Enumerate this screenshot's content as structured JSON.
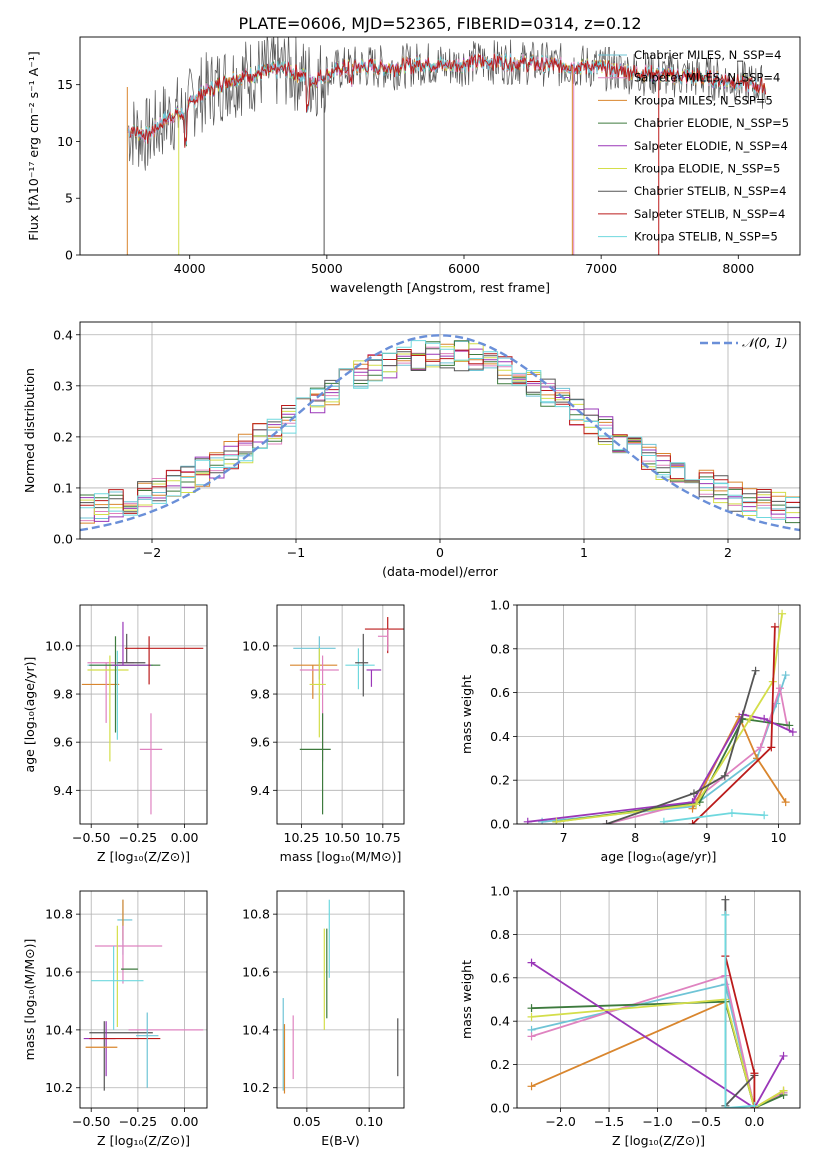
{
  "figure_title": "PLATE=0606, MJD=52365, FIBERID=0314, z=0.12",
  "colors": {
    "series": [
      "#6fc4d6",
      "#df83c0",
      "#d9862e",
      "#3d7a3d",
      "#9a37b8",
      "#d4de4a",
      "#555555",
      "#bb1b1b",
      "#6fd8de"
    ],
    "gaussian": "#6a8fd8"
  },
  "chart_data": [
    {
      "id": "spectrum",
      "type": "line",
      "title": "PLATE=0606, MJD=52365, FIBERID=0314, z=0.12",
      "xlabel": "wavelength [Angstrom, rest frame]",
      "ylabel": "Flux [fλ10⁻¹⁷ erg cm⁻² s⁻¹ A⁻¹]",
      "xlim": [
        3200,
        8450
      ],
      "ylim": [
        0,
        19.2
      ],
      "xticks": [
        "4000",
        "5000",
        "6000",
        "7000",
        "8000"
      ],
      "yticks": [
        "0",
        "5",
        "10",
        "15"
      ],
      "grid": false,
      "legend_position": "top-right",
      "series": [
        {
          "name": "Chabrier MILES, N_SSP=4"
        },
        {
          "name": "Salpeter MILES, N_SSP=4"
        },
        {
          "name": "Kroupa MILES, N_SSP=5"
        },
        {
          "name": "Chabrier ELODIE, N_SSP=5"
        },
        {
          "name": "Salpeter ELODIE, N_SSP=4"
        },
        {
          "name": "Kroupa ELODIE, N_SSP=5"
        },
        {
          "name": "Chabrier STELIB, N_SSP=4"
        },
        {
          "name": "Salpeter STELIB, N_SSP=4"
        },
        {
          "name": "Kroupa STELIB, N_SSP=5"
        }
      ],
      "continuum": {
        "x": [
          3550,
          3700,
          3800,
          3900,
          3950,
          4050,
          4150,
          4300,
          4500,
          4700,
          4900,
          5100,
          5300,
          5500,
          5700,
          5900,
          6100,
          6300,
          6500,
          6700,
          6900,
          7100,
          7300,
          7500,
          7700,
          7900,
          8100,
          8200
        ],
        "y": [
          11,
          10.5,
          11.8,
          12.5,
          12.3,
          14,
          14.6,
          15.5,
          16,
          16.4,
          15.4,
          16.4,
          16.6,
          16.5,
          16.9,
          16.7,
          17,
          17,
          16.9,
          16.7,
          16.6,
          16.3,
          16,
          15.8,
          15.7,
          15.4,
          15,
          14.8
        ]
      }
    },
    {
      "id": "residuals",
      "type": "line",
      "xlabel": "(data-model)/error",
      "ylabel": "Normed distribution",
      "xlim": [
        -2.5,
        2.5
      ],
      "ylim": [
        0,
        0.425
      ],
      "xticks": [
        "−2",
        "−1",
        "0",
        "1",
        "2"
      ],
      "yticks": [
        "0.0",
        "0.1",
        "0.2",
        "0.3",
        "0.4"
      ],
      "grid": true,
      "legend": "𝒩(0, 1)",
      "legend_position": "top-right",
      "gaussian": {
        "mean": 0,
        "sigma": 1
      }
    },
    {
      "id": "age-vs-Z",
      "type": "scatter",
      "xlabel": "Z [log₁₀(Z/Z⊙)]",
      "ylabel": "age  [log₁₀(age/yr)]",
      "xlim": [
        -0.56,
        0.12
      ],
      "ylim": [
        9.26,
        10.17
      ],
      "xticks": [
        "−0.50",
        "−0.25",
        "0.00"
      ],
      "yticks": [
        "9.4",
        "9.6",
        "9.8",
        "10.0"
      ],
      "grid": true,
      "points": [
        {
          "x": -0.52,
          "y": 9.92,
          "xerr": [
            0,
            0.35
          ],
          "yerr": [
            0,
            0
          ]
        },
        {
          "x": -0.42,
          "y": 9.84,
          "xerr": [
            0.13,
            0.07
          ],
          "yerr": [
            0,
            0
          ]
        },
        {
          "x": -0.42,
          "y": 9.93,
          "xerr": [
            0.1,
            0.15
          ],
          "yerr": [
            0.25,
            0
          ]
        },
        {
          "x": -0.4,
          "y": 9.9,
          "xerr": [
            0.12,
            0.1
          ],
          "yerr": [
            0.38,
            0.06
          ]
        },
        {
          "x": -0.37,
          "y": 9.92,
          "xerr": [
            0.14,
            0.24
          ],
          "yerr": [
            0.28,
            0.12
          ]
        },
        {
          "x": -0.36,
          "y": 9.83,
          "xerr": [
            0,
            0
          ],
          "yerr": [
            0.22,
            0.15
          ]
        },
        {
          "x": -0.31,
          "y": 9.93,
          "xerr": [
            0.05,
            0.1
          ],
          "yerr": [
            0,
            0.12
          ]
        },
        {
          "x": -0.33,
          "y": 9.92,
          "xerr": [
            0.06,
            0.15
          ],
          "yerr": [
            0,
            0.18
          ]
        },
        {
          "x": -0.19,
          "y": 9.99,
          "xerr": [
            0.13,
            0.29
          ],
          "yerr": [
            0.15,
            0.05
          ]
        },
        {
          "x": -0.18,
          "y": 9.57,
          "xerr": [
            0.06,
            0.06
          ],
          "yerr": [
            0.27,
            0.15
          ]
        }
      ]
    },
    {
      "id": "age-vs-mass",
      "type": "scatter",
      "xlabel": "mass [log₁₀(M/M⊙)]",
      "ylabel": "",
      "xlim": [
        10.1,
        10.88
      ],
      "ylim": [
        9.26,
        10.17
      ],
      "xticks": [
        "10.25",
        "10.50",
        "10.75"
      ],
      "yticks": [
        "9.4",
        "9.6",
        "9.8",
        "10.0"
      ],
      "grid": true,
      "points": [
        {
          "x": 10.36,
          "y": 9.99,
          "xerr": [
            0.16,
            0.1
          ],
          "yerr": [
            0.13,
            0.05
          ]
        },
        {
          "x": 10.32,
          "y": 9.92,
          "xerr": [
            0.14,
            0.15
          ],
          "yerr": [
            0.14,
            0
          ]
        },
        {
          "x": 10.38,
          "y": 9.9,
          "xerr": [
            0.14,
            0.1
          ],
          "yerr": [
            0.38,
            0.06
          ]
        },
        {
          "x": 10.36,
          "y": 9.84,
          "xerr": [
            0.06,
            0.04
          ],
          "yerr": [
            0.22,
            0.15
          ]
        },
        {
          "x": 10.38,
          "y": 9.57,
          "xerr": [
            0.14,
            0.05
          ],
          "yerr": [
            0.27,
            0.15
          ]
        },
        {
          "x": 10.6,
          "y": 9.92,
          "xerr": [
            0.08,
            0.1
          ],
          "yerr": [
            0.1,
            0.07
          ]
        },
        {
          "x": 10.63,
          "y": 9.93,
          "xerr": [
            0.05,
            0.03
          ],
          "yerr": [
            0.14,
            0.12
          ]
        },
        {
          "x": 10.68,
          "y": 9.9,
          "xerr": [
            0.03,
            0.06
          ],
          "yerr": [
            0.07,
            0
          ]
        },
        {
          "x": 10.78,
          "y": 10.07,
          "xerr": [
            0.14,
            0.1
          ],
          "yerr": [
            0.1,
            0.05
          ]
        },
        {
          "x": 10.78,
          "y": 10.04,
          "xerr": [
            0.06,
            0
          ],
          "yerr": [
            0.06,
            0.03
          ]
        }
      ]
    },
    {
      "id": "weight-vs-age",
      "type": "line",
      "xlabel": "age  [log₁₀(age/yr)]",
      "ylabel": "mass weight",
      "xlim": [
        6.35,
        10.3
      ],
      "ylim": [
        0,
        1
      ],
      "xticks": [
        "7",
        "8",
        "9",
        "10"
      ],
      "yticks": [
        "0.0",
        "0.2",
        "0.4",
        "0.6",
        "0.8",
        "1.0"
      ],
      "grid": true,
      "series": [
        {
          "x": [
            6.7,
            8.8,
            9.7,
            9.97,
            10.1
          ],
          "y": [
            0.01,
            0.08,
            0.3,
            0.55,
            0.68
          ]
        },
        {
          "x": [
            7.6,
            8.8,
            9.75,
            10.02,
            10.12
          ],
          "y": [
            0,
            0.1,
            0.35,
            0.62,
            0.45
          ]
        },
        {
          "x": [
            8.8,
            9.45,
            9.7,
            10.1
          ],
          "y": [
            0.07,
            0.49,
            0.3,
            0.1
          ]
        },
        {
          "x": [
            6.9,
            8.9,
            9.5,
            10.15
          ],
          "y": [
            0.01,
            0.1,
            0.48,
            0.45
          ]
        },
        {
          "x": [
            6.5,
            8.8,
            9.5,
            9.8,
            10.2
          ],
          "y": [
            0.01,
            0.1,
            0.5,
            0.48,
            0.42
          ]
        },
        {
          "x": [
            6.9,
            8.85,
            9.6,
            9.92,
            10.05
          ],
          "y": [
            0.01,
            0.09,
            0.48,
            0.65,
            0.96
          ]
        },
        {
          "x": [
            7.6,
            8.82,
            9.25,
            9.68
          ],
          "y": [
            0,
            0.14,
            0.22,
            0.7
          ]
        },
        {
          "x": [
            8.8,
            9.9,
            9.95
          ],
          "y": [
            0,
            0.35,
            0.9
          ]
        },
        {
          "x": [
            8.4,
            9.35,
            9.8
          ],
          "y": [
            0.01,
            0.05,
            0.04
          ]
        }
      ]
    },
    {
      "id": "mass-vs-Z",
      "type": "scatter",
      "xlabel": "Z [log₁₀(Z/Z⊙)]",
      "ylabel": "mass [log₁₀(M/M⊙)]",
      "xlim": [
        -0.56,
        0.12
      ],
      "ylim": [
        10.13,
        10.88
      ],
      "xticks": [
        "−0.50",
        "−0.25",
        "0.00"
      ],
      "yticks": [
        "10.2",
        "10.4",
        "10.6",
        "10.8"
      ],
      "grid": true,
      "points": [
        {
          "x": -0.33,
          "y": 10.78,
          "xerr": [
            0.03,
            0.05
          ],
          "yerr": [
            0.12,
            0.07
          ]
        },
        {
          "x": -0.33,
          "y": 10.77,
          "xerr": [
            0,
            0
          ],
          "yerr": [
            0.06,
            0.08
          ]
        },
        {
          "x": -0.33,
          "y": 10.69,
          "xerr": [
            0.15,
            0.21
          ],
          "yerr": [
            0.13,
            0.07
          ]
        },
        {
          "x": -0.36,
          "y": 10.61,
          "xerr": [
            0,
            0
          ],
          "yerr": [
            0.2,
            0.15
          ]
        },
        {
          "x": -0.3,
          "y": 10.61,
          "xerr": [
            0.04,
            0.05
          ],
          "yerr": [
            0,
            0
          ]
        },
        {
          "x": -0.38,
          "y": 10.57,
          "xerr": [
            0.12,
            0.16
          ],
          "yerr": [
            0.17,
            0.12
          ]
        },
        {
          "x": -0.43,
          "y": 10.39,
          "xerr": [
            0.08,
            0.26
          ],
          "yerr": [
            0.2,
            0.04
          ]
        },
        {
          "x": -0.42,
          "y": 10.37,
          "xerr": [
            0.12,
            0.05
          ],
          "yerr": [
            0.13,
            0.06
          ]
        },
        {
          "x": -0.35,
          "y": 10.37,
          "xerr": [
            0.16,
            0.22
          ],
          "yerr": [
            0,
            0
          ]
        },
        {
          "x": -0.16,
          "y": 10.4,
          "xerr": [
            0.14,
            0.26
          ],
          "yerr": [
            0,
            0
          ]
        },
        {
          "x": -0.2,
          "y": 10.38,
          "xerr": [
            0.06,
            0.06
          ],
          "yerr": [
            0.18,
            0.08
          ]
        },
        {
          "x": -0.4,
          "y": 10.34,
          "xerr": [
            0.13,
            0.04
          ],
          "yerr": [
            0,
            0
          ]
        }
      ]
    },
    {
      "id": "mass-vs-EBV",
      "type": "scatter",
      "xlabel": "E(B-V)",
      "ylabel": "",
      "xlim": [
        0.026,
        0.128
      ],
      "ylim": [
        10.13,
        10.88
      ],
      "xticks": [
        "0.05",
        "0.10"
      ],
      "yticks": [
        "10.2",
        "10.4",
        "10.6",
        "10.8"
      ],
      "grid": true,
      "points": [
        {
          "x": 0.031,
          "y": 10.3,
          "xerr": [
            0,
            0
          ],
          "yerr": [
            0.11,
            0.21
          ]
        },
        {
          "x": 0.032,
          "y": 10.26,
          "xerr": [
            0,
            0
          ],
          "yerr": [
            0.08,
            0.16
          ]
        },
        {
          "x": 0.039,
          "y": 10.33,
          "xerr": [
            0,
            0
          ],
          "yerr": [
            0.1,
            0.12
          ]
        },
        {
          "x": 0.064,
          "y": 10.57,
          "xerr": [
            0,
            0
          ],
          "yerr": [
            0.17,
            0.18
          ]
        },
        {
          "x": 0.066,
          "y": 10.6,
          "xerr": [
            0,
            0
          ],
          "yerr": [
            0.16,
            0.15
          ]
        },
        {
          "x": 0.068,
          "y": 10.7,
          "xerr": [
            0,
            0
          ],
          "yerr": [
            0.12,
            0.15
          ]
        },
        {
          "x": 0.123,
          "y": 10.34,
          "xerr": [
            0,
            0
          ],
          "yerr": [
            0.1,
            0.1
          ]
        }
      ]
    },
    {
      "id": "weight-vs-Z",
      "type": "line",
      "xlabel": "Z [log₁₀(Z/Z⊙)]",
      "ylabel": "mass weight",
      "xlim": [
        -2.45,
        0.47
      ],
      "ylim": [
        0,
        1
      ],
      "xticks": [
        "−2.0",
        "−1.5",
        "−1.0",
        "−0.5",
        "0.0"
      ],
      "yticks": [
        "0.0",
        "0.2",
        "0.4",
        "0.6",
        "0.8",
        "1.0"
      ],
      "grid": true,
      "series": [
        {
          "x": [
            -2.3,
            -0.3,
            0,
            0.3
          ],
          "y": [
            0.36,
            0.57,
            0,
            0.07
          ]
        },
        {
          "x": [
            -2.3,
            -0.3,
            0,
            0.3
          ],
          "y": [
            0.33,
            0.61,
            0,
            0.07
          ]
        },
        {
          "x": [
            -2.3,
            -0.3,
            0,
            0.3
          ],
          "y": [
            0.1,
            0.49,
            0,
            0.08
          ]
        },
        {
          "x": [
            -2.3,
            -0.3,
            0,
            0.3
          ],
          "y": [
            0.46,
            0.49,
            0,
            0.06
          ]
        },
        {
          "x": [
            -2.3,
            0,
            0.3
          ],
          "y": [
            0.67,
            0,
            0.24
          ]
        },
        {
          "x": [
            -2.3,
            -0.3,
            0,
            0.3
          ],
          "y": [
            0.42,
            0.5,
            0,
            0.08
          ]
        },
        {
          "x": [
            -0.3,
            -0.3,
            0
          ],
          "y": [
            0.96,
            0.01,
            0.15
          ]
        },
        {
          "x": [
            -0.3,
            0,
            0
          ],
          "y": [
            0.7,
            0.16,
            0
          ]
        },
        {
          "x": [
            -0.3,
            -0.3,
            0
          ],
          "y": [
            0.89,
            0,
            0.01
          ]
        }
      ]
    }
  ]
}
